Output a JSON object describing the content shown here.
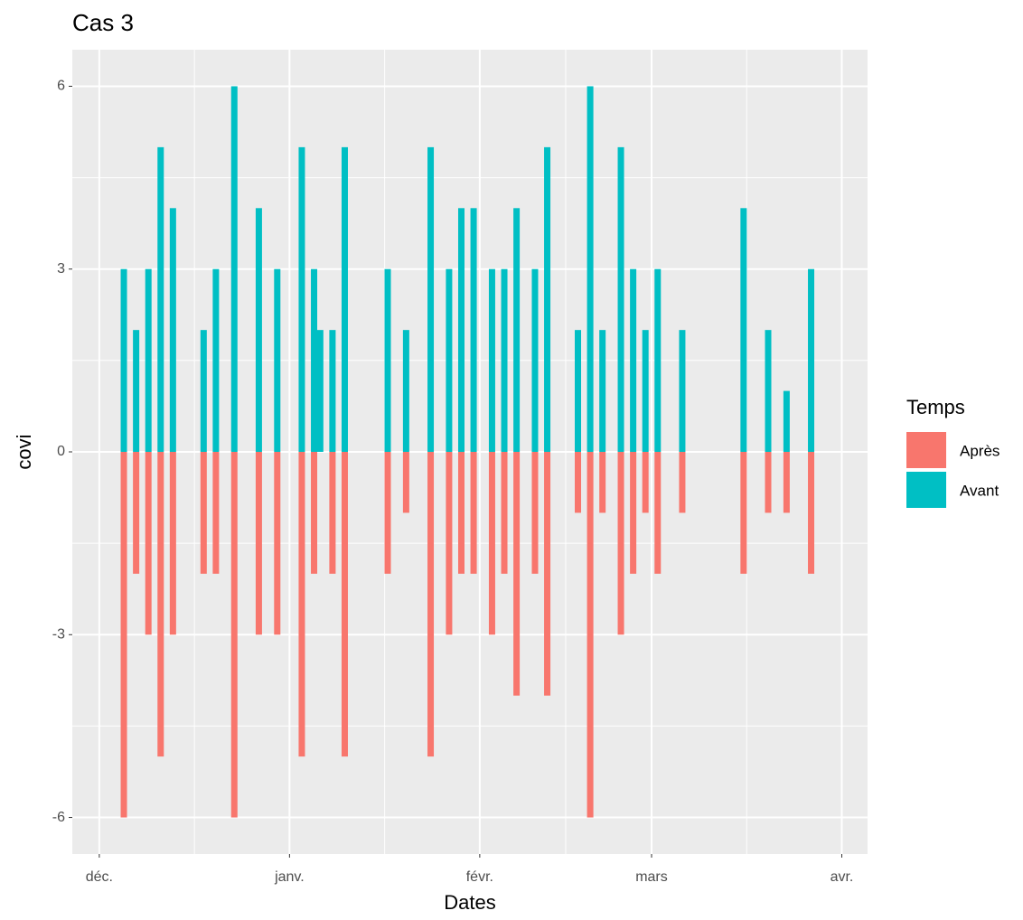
{
  "chart_data": {
    "type": "bar",
    "title": "Cas 3",
    "x_label": "Dates",
    "y_label": "covi",
    "legend_title": "Temps",
    "legend_position": "right",
    "grid": true,
    "x": [
      4,
      6,
      8,
      10,
      12,
      17,
      19,
      22,
      26,
      29,
      33,
      35,
      36,
      38,
      40,
      47,
      50,
      54,
      57,
      59,
      61,
      64,
      66,
      68,
      71,
      73,
      78,
      80,
      82,
      85,
      87,
      89,
      91,
      95,
      105,
      109,
      112,
      116
    ],
    "series": [
      {
        "name": "Après",
        "color": "#F8766D",
        "values": [
          -6,
          -2,
          -3,
          -5,
          -3,
          -2,
          -2,
          -6,
          -3,
          -3,
          -5,
          -2,
          0,
          -2,
          -5,
          -2,
          -1,
          -5,
          -3,
          -2,
          -2,
          -3,
          -2,
          -4,
          -2,
          -4,
          -1,
          -6,
          -1,
          -3,
          -2,
          -1,
          -2,
          -1,
          -2,
          -1,
          -1,
          -2
        ]
      },
      {
        "name": "Avant",
        "color": "#00BFC4",
        "values": [
          3,
          2,
          3,
          5,
          4,
          2,
          3,
          6,
          4,
          3,
          5,
          3,
          2,
          2,
          5,
          3,
          2,
          5,
          3,
          4,
          4,
          3,
          3,
          4,
          3,
          5,
          2,
          6,
          2,
          5,
          3,
          2,
          3,
          2,
          4,
          2,
          1,
          3
        ]
      }
    ],
    "xlim": [
      -4.4,
      125.2
    ],
    "xticks": [
      {
        "value": 0,
        "label": "déc."
      },
      {
        "value": 31,
        "label": "janv."
      },
      {
        "value": 62,
        "label": "févr."
      },
      {
        "value": 90,
        "label": "mars"
      },
      {
        "value": 121,
        "label": "avr."
      }
    ],
    "ylim": [
      -6.6,
      6.6
    ],
    "yticks": [
      -6,
      -3,
      0,
      3,
      6
    ]
  }
}
